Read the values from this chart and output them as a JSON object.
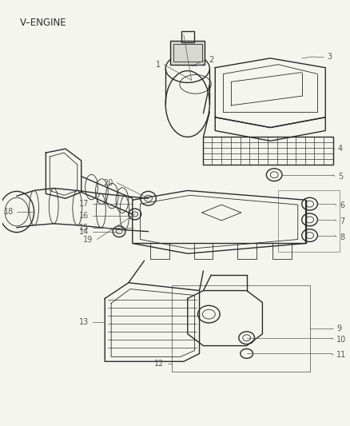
{
  "title": "V–ENGINE",
  "bg_color": "#f5f5f0",
  "line_color": "#2a2a2a",
  "label_color": "#555555",
  "title_fontsize": 8.5,
  "label_fontsize": 7,
  "fig_width": 4.38,
  "fig_height": 5.33,
  "dpi": 100
}
